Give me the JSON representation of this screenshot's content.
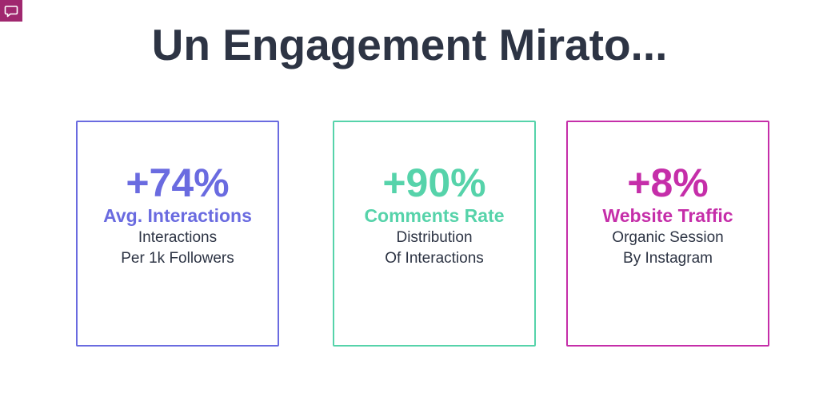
{
  "title": "Un Engagement Mirato...",
  "logo": {
    "icon": "chat-bubble-icon",
    "color": "#a0276f"
  },
  "cards": [
    {
      "stat": "+74%",
      "label": "Avg. Interactions",
      "desc_line1": "Interactions",
      "desc_line2": "Per 1k Followers",
      "color": "#6a6be0"
    },
    {
      "stat": "+90%",
      "label": "Comments Rate",
      "desc_line1": "Distribution",
      "desc_line2": "Of Interactions",
      "color": "#56d3aa"
    },
    {
      "stat": "+8%",
      "label": "Website Traffic",
      "desc_line1": "Organic Session",
      "desc_line2": "By Instagram",
      "color": "#c52ea9"
    }
  ]
}
